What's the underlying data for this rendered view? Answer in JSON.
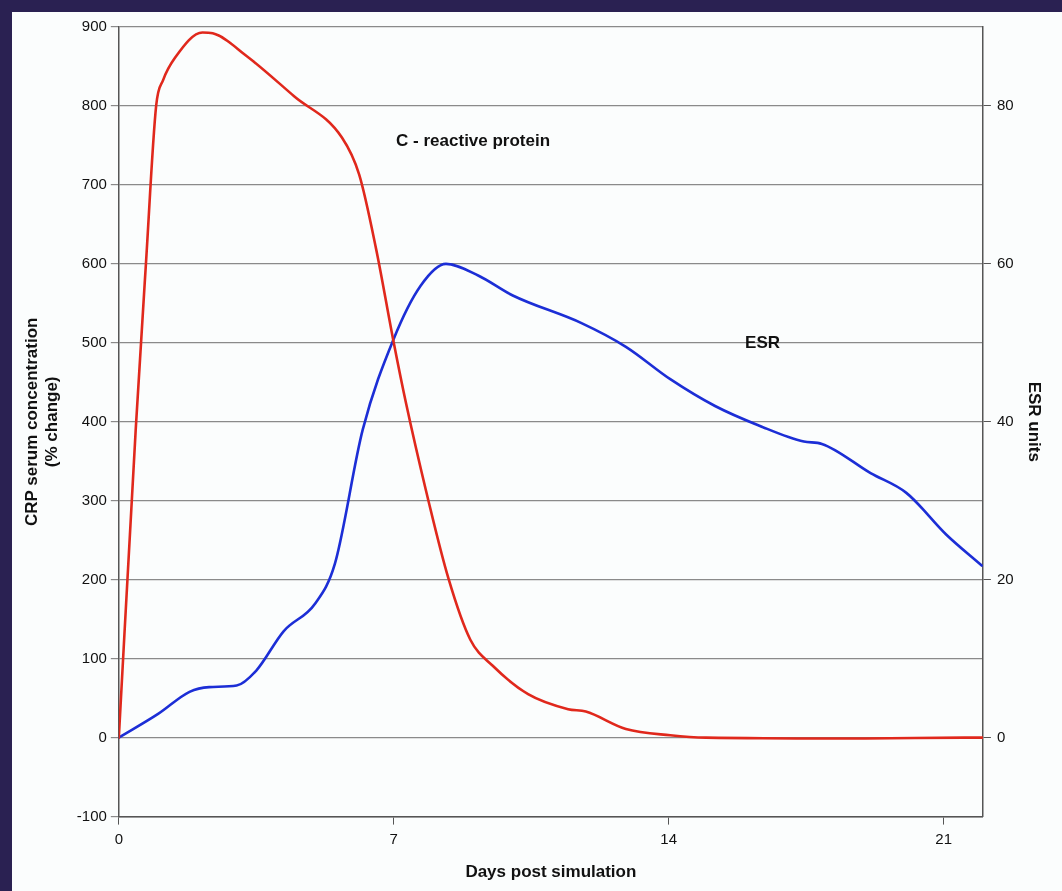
{
  "chart_data": {
    "type": "line",
    "xlabel": "Days post simulation",
    "ylabel": "CRP serum concentration\n(% change)",
    "y2label": "ESR units",
    "xlim": [
      0,
      22
    ],
    "xticks": [
      0,
      7,
      14,
      21
    ],
    "ylim": [
      -100,
      900
    ],
    "yticks": [
      -100,
      0,
      100,
      200,
      300,
      400,
      500,
      600,
      700,
      800,
      900
    ],
    "y2lim": [
      -10,
      90
    ],
    "y2ticks": [
      0,
      20,
      40,
      60,
      80
    ],
    "grid": "y",
    "legend": false,
    "marker": "none",
    "line_style": "solid",
    "annotations": [
      "C - reactive protein",
      "ESR"
    ],
    "series": [
      {
        "color": "#e0281c",
        "x": [
          0,
          0.43,
          0.69,
          0.95,
          1.13,
          1.43,
          2.13,
          2.39,
          3.26,
          4.47,
          5.68,
          6.12,
          6.55,
          7.0,
          7.31,
          7.82,
          8.39,
          8.95,
          9.52,
          10.42,
          11.44,
          11.89,
          12.91,
          14.04,
          14.95,
          19.0,
          21.52,
          22
        ],
        "values": [
          0,
          390,
          600,
          800,
          833,
          861,
          893,
          892,
          863,
          812,
          760,
          713,
          619,
          500,
          424,
          313,
          202,
          124,
          91,
          55,
          36,
          33,
          11,
          3,
          0,
          -1,
          0,
          0
        ]
      },
      {
        "color": "#1c2ed6",
        "axis": "y2",
        "x": [
          0,
          1.0,
          1.8,
          2.3,
          3.0,
          3.5,
          4.2,
          5.0,
          5.5,
          6.21,
          6.99,
          7.68,
          8.33,
          9.16,
          10.03,
          11.78,
          12.91,
          14.04,
          15.18,
          16.31,
          17.44,
          17.9,
          19.14,
          20.05,
          21.07,
          21.97
        ],
        "values": [
          0,
          3,
          5.8,
          6.4,
          6.6,
          8.5,
          13.5,
          17,
          22,
          39,
          50.4,
          57.2,
          60,
          58.5,
          56,
          52.5,
          49.5,
          45.4,
          42,
          39.5,
          37.5,
          37.2,
          33.5,
          31,
          25.7,
          21.8
        ]
      }
    ]
  }
}
